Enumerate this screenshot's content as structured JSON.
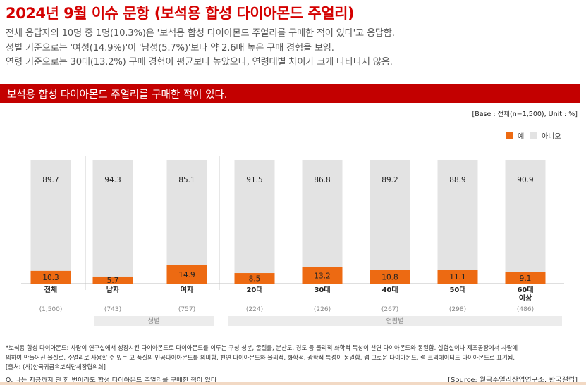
{
  "title": "2024년 9월 이슈 문항 (보석용 합성 다이아몬드 주얼리)",
  "summary": [
    "전체 응답자의 10명 중 1명(10.3%)은 '보석용 합성 다이아몬드 주얼리를 구매한 적이 있다'고 응답함.",
    "성별 기준으로는 '여성(14.9%)'이 '남성(5.7%)'보다 약 2.6배 높은 구매 경험을 보임.",
    "연령 기준으로는 30대(13.2%) 구매 경험이 평균보다 높았으나, 연령대별 차이가 크게 나타나지 않음."
  ],
  "banner": "보석용 합성 다이아몬드 주얼리를 구매한 적이 있다.",
  "base_note": "[Base : 전체(n=1,500), Unit : %]",
  "colors": {
    "yes": "#ed6a12",
    "no": "#e3e3e3",
    "banner": "#c30000",
    "title": "#d40000"
  },
  "chart_data": {
    "type": "bar",
    "stacked": true,
    "unit": "%",
    "ylim": [
      0,
      100
    ],
    "categories": [
      "전체",
      "남자",
      "여자",
      "20대",
      "30대",
      "40대",
      "50대",
      "60대 이상"
    ],
    "category_lines": [
      [
        "전체"
      ],
      [
        "남자"
      ],
      [
        "여자"
      ],
      [
        "20대"
      ],
      [
        "30대"
      ],
      [
        "40대"
      ],
      [
        "50대"
      ],
      [
        "60대",
        "이상"
      ]
    ],
    "bases": [
      "(1,500)",
      "(743)",
      "(757)",
      "(224)",
      "(226)",
      "(267)",
      "(298)",
      "(486)"
    ],
    "series": [
      {
        "name": "예",
        "values": [
          10.3,
          5.7,
          14.9,
          8.5,
          13.2,
          10.8,
          11.1,
          9.1
        ]
      },
      {
        "name": "아니오",
        "values": [
          89.7,
          94.3,
          85.1,
          91.5,
          86.8,
          89.2,
          88.9,
          90.9
        ]
      }
    ],
    "groups": [
      {
        "label": "성별",
        "members": [
          "남자",
          "여자"
        ]
      },
      {
        "label": "연령별",
        "members": [
          "20대",
          "30대",
          "40대",
          "50대",
          "60대 이상"
        ]
      }
    ],
    "legend": "top-right"
  },
  "footnote": [
    "*보석용 합성 다이아몬드: 사람이 연구실에서 성장시킨 다이아몬드로 다이아몬드를 이루는 구성 성분, 굴절률, 분산도, 경도 등 물리적 화학적 특성이 천연 다이아몬드와 동일함. 실험실이나 제조공장에서 사람에",
    "의하여 만들어진 물질로, 주얼리로 사용할 수 있는 고 품질의 인공다이아몬드를 의미함. 천연 다이아몬드와 물리적, 화학적, 광학적 특성이 동일함. 랩 그로운 다이아몬드, 랩 크리에이티드 다이아몬드로 표기됨.",
    "[출처: (사)한국귀금속보석단체장협의회]"
  ],
  "question": "Q. 나는 지금까지 단 한 번이라도 합성 다이아몬드 주얼리를 구매한 적이 있다",
  "source": "[Source: 월곡주얼리산업연구소, 한국갤럽]"
}
